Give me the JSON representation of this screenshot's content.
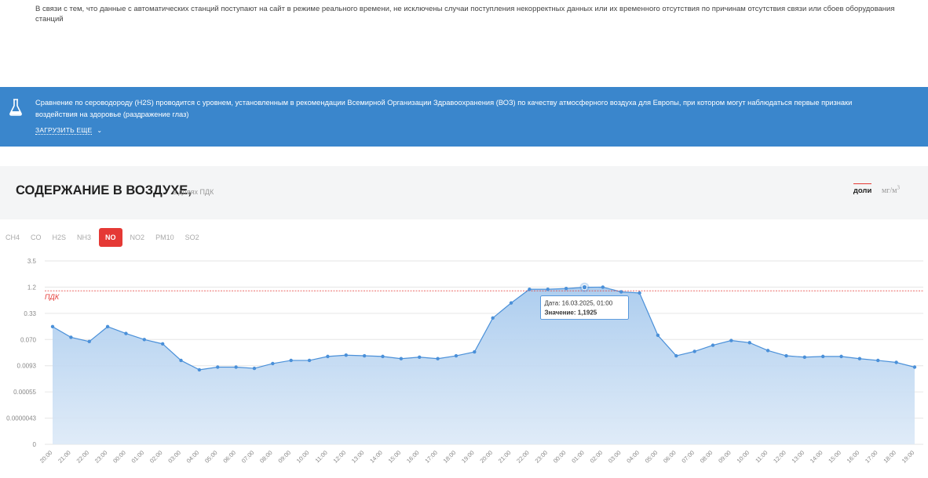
{
  "notice": {
    "text": "В связи с тем, что данные с автоматических станций поступают на сайт в режиме реального времени, не исключены случаи поступления некорректных данных или их временного отсутствия по причинам отсутствия связи или сбоев оборудования станций"
  },
  "banner": {
    "icon": "flask-icon",
    "text": "Сравнение по сероводороду (H2S) проводится с уровнем, установленным в рекомендации Всемирной Организации Здравоохранения (ВОЗ) по качеству атмосферного воздуха для Европы, при котором могут наблюдаться первые признаки воздействия на здоровье (раздражение глаз)",
    "more_label": "ЗАГРУЗИТЬ ЕЩЕ",
    "more_icon": "chevron-down-icon",
    "background": "#3a86cc"
  },
  "panel": {
    "title": "СОДЕРЖАНИЕ В ВОЗДУХЕ,",
    "subtitle": "в долях ПДК",
    "units": {
      "active": "доли",
      "other": "мг/м",
      "other_sup": "3"
    }
  },
  "tabs": [
    {
      "label": "CH4",
      "active": false
    },
    {
      "label": "CO",
      "active": false
    },
    {
      "label": "H2S",
      "active": false
    },
    {
      "label": "NH3",
      "active": false
    },
    {
      "label": "NO",
      "active": true
    },
    {
      "label": "NO2",
      "active": false
    },
    {
      "label": "PM10",
      "active": false
    },
    {
      "label": "SO2",
      "active": false
    }
  ],
  "colors": {
    "accent": "#e53935",
    "series": "#4a90d9",
    "area": "#c5dcf2"
  },
  "chart_data": {
    "type": "area",
    "y_ticks": [
      "3.5",
      "1.2",
      "0.33",
      "0.070",
      "0.0093",
      "0.00055",
      "0.0000043",
      "0"
    ],
    "x": [
      "20:00",
      "21:00",
      "22:00",
      "23:00",
      "00:00",
      "01:00",
      "02:00",
      "03:00",
      "04:00",
      "05:00",
      "06:00",
      "07:00",
      "08:00",
      "09:00",
      "10:00",
      "11:00",
      "12:00",
      "13:00",
      "14:00",
      "15:00",
      "16:00",
      "17:00",
      "18:00",
      "19:00",
      "20:00",
      "21:00",
      "22:00",
      "23:00",
      "00:00",
      "01:00",
      "02:00",
      "03:00",
      "04:00",
      "05:00",
      "06:00",
      "07:00",
      "08:00",
      "09:00",
      "10:00",
      "11:00",
      "12:00",
      "13:00",
      "14:00",
      "15:00",
      "16:00",
      "17:00",
      "18:00",
      "19:00"
    ],
    "series": [
      {
        "values": [
          0.15,
          0.08,
          0.06,
          0.15,
          0.1,
          0.07,
          0.05,
          0.014,
          0.006,
          0.008,
          0.008,
          0.007,
          0.011,
          0.014,
          0.014,
          0.019,
          0.021,
          0.02,
          0.019,
          0.016,
          0.018,
          0.016,
          0.02,
          0.027,
          0.25,
          0.55,
          1.08,
          1.08,
          1.12,
          1.1925,
          1.2,
          0.95,
          0.9,
          0.09,
          0.02,
          0.028,
          0.045,
          0.065,
          0.055,
          0.03,
          0.02,
          0.018,
          0.019,
          0.019,
          0.016,
          0.014,
          0.012,
          0.008
        ]
      }
    ],
    "threshold": {
      "label": "ПДК",
      "value": 1.0
    },
    "tooltip": {
      "date_label": "Дата:",
      "date": "16.03.2025, 01:00",
      "value_label": "Значение:",
      "value": "1,1925",
      "index": 29
    },
    "grid": true,
    "log_scale": true
  }
}
